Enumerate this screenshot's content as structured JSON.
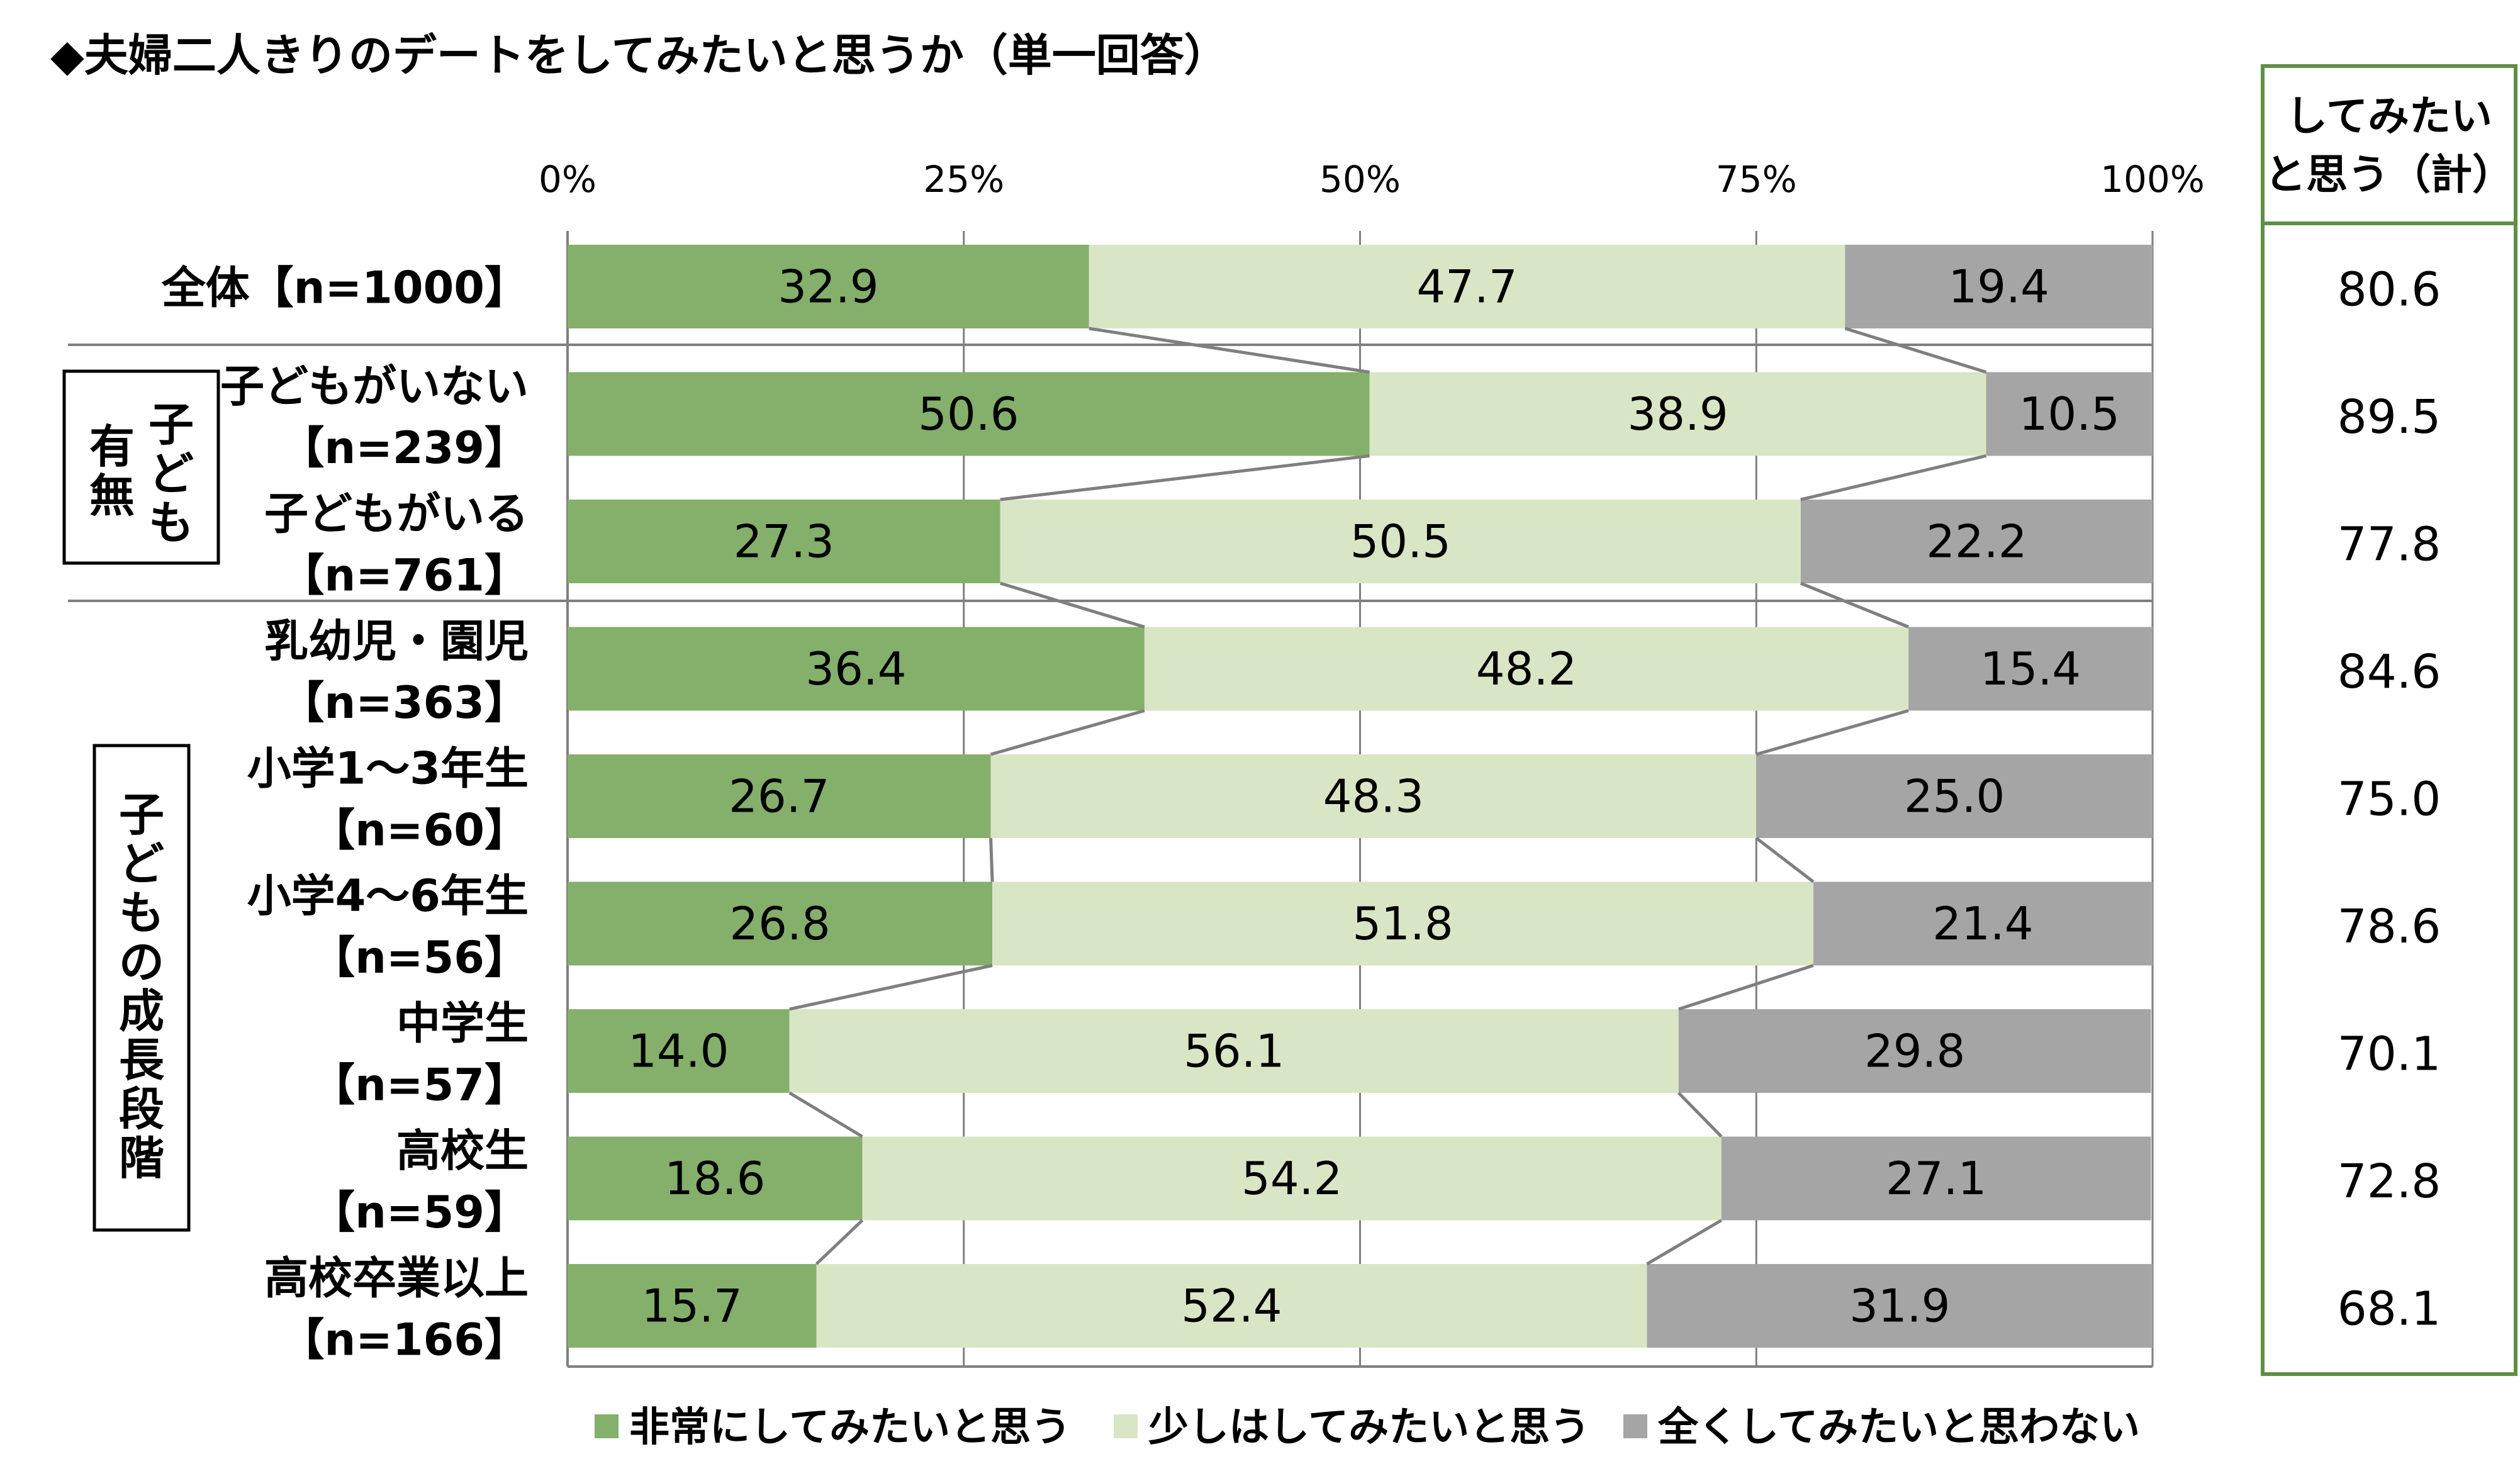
{
  "chart_data": {
    "type": "bar",
    "orientation": "horizontal",
    "stacked": true,
    "title": "◆夫婦二人きりのデートをしてみたいと思うか（単一回答）",
    "xlim": [
      0,
      100
    ],
    "x_ticks": [
      "0%",
      "25%",
      "50%",
      "75%",
      "100%"
    ],
    "grid": true,
    "legend_position": "bottom",
    "categories": [
      {
        "line1": "全体【n=1000】",
        "line2": ""
      },
      {
        "line1": "子どもがいない",
        "line2": "【n=239】"
      },
      {
        "line1": "子どもがいる",
        "line2": "【n=761】"
      },
      {
        "line1": "乳幼児・園児",
        "line2": "【n=363】"
      },
      {
        "line1": "小学1～3年生",
        "line2": "【n=60】"
      },
      {
        "line1": "小学4～6年生",
        "line2": "【n=56】"
      },
      {
        "line1": "中学生",
        "line2": "【n=57】"
      },
      {
        "line1": "高校生",
        "line2": "【n=59】"
      },
      {
        "line1": "高校卒業以上",
        "line2": "【n=166】"
      }
    ],
    "groups": [
      {
        "label": "子ども有無",
        "rows": [
          1,
          2
        ]
      },
      {
        "label": "子どもの成長段階",
        "rows": [
          3,
          4,
          5,
          6,
          7,
          8
        ]
      }
    ],
    "series": [
      {
        "name": "非常にしてみたいと思う",
        "color": "#84b06b",
        "values": [
          32.9,
          50.6,
          27.3,
          36.4,
          26.7,
          26.8,
          14.0,
          18.6,
          15.7
        ],
        "labels": [
          "32.9",
          "50.6",
          "27.3",
          "36.4",
          "26.7",
          "26.8",
          "14.0",
          "18.6",
          "15.7"
        ]
      },
      {
        "name": "少しはしてみたいと思う",
        "color": "#d9e6c5",
        "values": [
          47.7,
          38.9,
          50.5,
          48.2,
          48.3,
          51.8,
          56.1,
          54.2,
          52.4
        ],
        "labels": [
          "47.7",
          "38.9",
          "50.5",
          "48.2",
          "48.3",
          "51.8",
          "56.1",
          "54.2",
          "52.4"
        ]
      },
      {
        "name": "全くしてみたいと思わない",
        "color": "#a5a5a5",
        "values": [
          19.4,
          10.5,
          22.2,
          15.4,
          25.0,
          21.4,
          29.8,
          27.1,
          31.9
        ],
        "labels": [
          "19.4",
          "10.5",
          "22.2",
          "15.4",
          "25.0",
          "21.4",
          "29.8",
          "27.1",
          "31.9"
        ]
      }
    ],
    "summary_column": {
      "header_line1": "してみたい",
      "header_line2": "と思う（計）",
      "values": [
        "80.6",
        "89.5",
        "77.8",
        "84.6",
        "75.0",
        "78.6",
        "70.1",
        "72.8",
        "68.1"
      ],
      "border_color": "#5f8f47"
    }
  }
}
